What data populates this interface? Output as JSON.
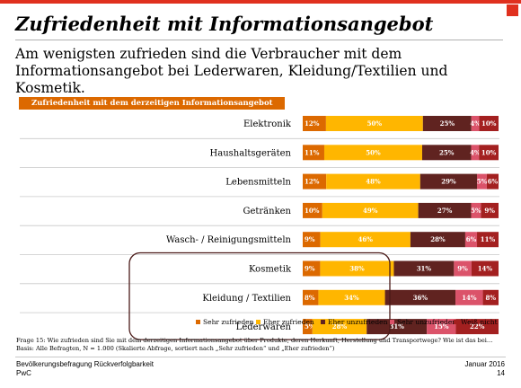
{
  "page": {
    "title": "Zufriedenheit mit Informationsangebot",
    "subtitle": "Am wenigsten zufrieden sind die Verbraucher mit dem Informationsangebot bei Lederwaren, Kleidung/Textilien und Kosmetik.",
    "footnote_line1": "Frage 15: Wie zufrieden sind Sie mit dem derzeitigen Informationsangebot über Produkte, deren Herkunft, Herstellung und Transportwege? Wie ist das bei…",
    "footnote_line2": "Basis: Alle Befragten, N = 1.000 (Skalierte Abfrage, sortiert nach „Sehr zufrieden“ und „Eher zufrieden“)",
    "footer_left_1": "Bevölkerungsbefragung Rückverfolgbarkeit",
    "footer_left_2": "PwC",
    "footer_right_1": "Januar 2016",
    "footer_right_2": "14",
    "accent_color": "#e0301e"
  },
  "chart_data": {
    "type": "bar",
    "orientation": "horizontal-stacked-100",
    "title": "Zufriedenheit mit dem derzeitigen Informationsangebot",
    "categories": [
      "Elektronik",
      "Haushaltsgeräten",
      "Lebensmitteln",
      "Getränken",
      "Wasch- / Reinigungsmitteln",
      "Kosmetik",
      "Kleidung / Textilien",
      "Lederwaren"
    ],
    "series": [
      {
        "name": "Sehr zufrieden",
        "color": "#dc6900",
        "values": [
          12,
          11,
          12,
          10,
          9,
          9,
          8,
          5
        ]
      },
      {
        "name": "Eher zufrieden",
        "color": "#ffb600",
        "values": [
          50,
          50,
          48,
          49,
          46,
          38,
          34,
          28
        ]
      },
      {
        "name": "Eher unzufrieden",
        "color": "#602320",
        "values": [
          25,
          25,
          29,
          27,
          28,
          31,
          36,
          31
        ]
      },
      {
        "name": "Sehr unzufrieden",
        "color": "#db536a",
        "values": [
          4,
          4,
          5,
          5,
          6,
          9,
          14,
          15
        ]
      },
      {
        "name": "Weiß nicht",
        "color": "#a32020",
        "values": [
          10,
          10,
          6,
          9,
          11,
          14,
          8,
          22
        ]
      }
    ],
    "legend_position": "bottom",
    "highlight_categories": [
      "Kosmetik",
      "Kleidung / Textilien",
      "Lederwaren"
    ]
  }
}
